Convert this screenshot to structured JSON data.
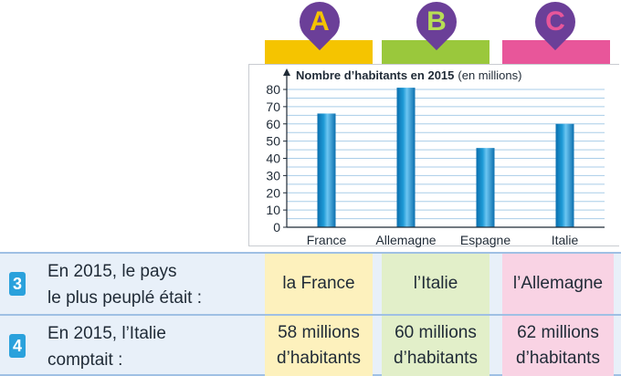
{
  "choices": [
    {
      "letter": "A",
      "bar_color": "#f5c400",
      "letter_color": "#f5c400"
    },
    {
      "letter": "B",
      "bar_color": "#9ac83c",
      "letter_color": "#b7dd55"
    },
    {
      "letter": "C",
      "bar_color": "#e8569a",
      "letter_color": "#e8569a"
    }
  ],
  "chart_data": {
    "type": "bar",
    "title_bold": "Nombre d’habitants en 2015",
    "title_unit": "(en millions)",
    "categories": [
      "France",
      "Allemagne",
      "Espagne",
      "Italie"
    ],
    "values": [
      66,
      81,
      46,
      60
    ],
    "ylim": [
      0,
      80
    ],
    "yticks": [
      "0",
      "10",
      "20",
      "30",
      "40",
      "50",
      "60",
      "70",
      "80"
    ],
    "grid": true,
    "bar_color": "#1e9ad6"
  },
  "questions": [
    {
      "number": "3",
      "line1": "En 2015, le pays",
      "line2": "le plus peuplé était :",
      "answers": [
        [
          "la France"
        ],
        [
          "l’Italie"
        ],
        [
          "l’Allemagne"
        ]
      ]
    },
    {
      "number": "4",
      "line1": "En 2015, l’Italie",
      "line2": "comptait :",
      "answers": [
        [
          "58 millions",
          "d’habitants"
        ],
        [
          "60 millions",
          "d’habitants"
        ],
        [
          "62 millions",
          "d’habitants"
        ]
      ]
    }
  ]
}
